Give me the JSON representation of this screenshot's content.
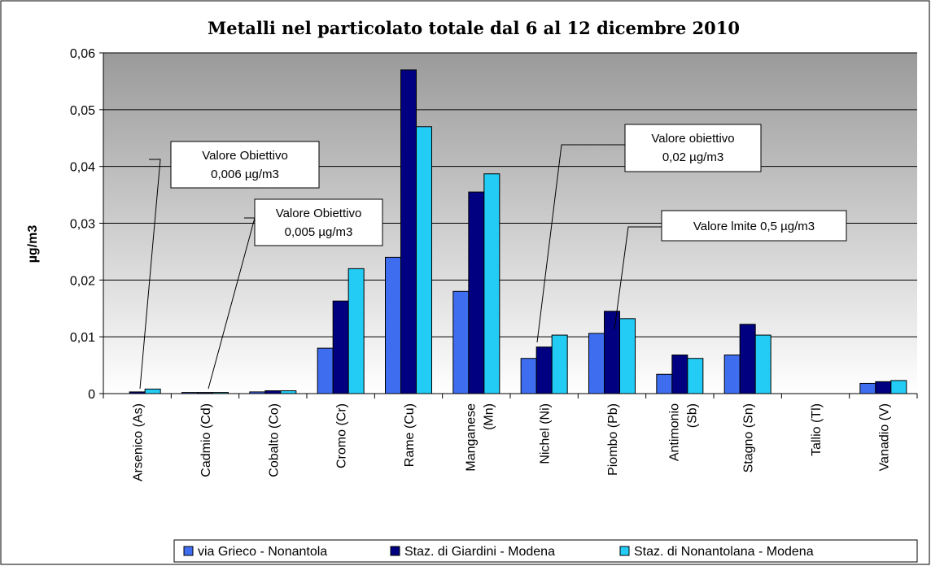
{
  "chart_data": {
    "type": "bar",
    "title": "Metalli nel particolato totale dal 6 al 12 dicembre 2010",
    "y_label": "µg/m3",
    "categories": [
      "Arsenico (As)",
      "Cadmio (Cd)",
      "Cobalto (Co)",
      "Cromo (Cr)",
      "Rame (Cu)",
      "Manganese\n(Mn)",
      "Nichel (Ni)",
      "Piombo (Pb)",
      "Antimonio\n(Sb)",
      "Stagno (Sn)",
      "Tallio (Tl)",
      "Vanadio (V)"
    ],
    "series": [
      {
        "name": "via Grieco - Nonantola",
        "color": "#3f6df0",
        "values": [
          0,
          0.0002,
          0.0003,
          0.008,
          0.024,
          0.018,
          0.0062,
          0.0106,
          0.0034,
          0.0068,
          0,
          0.0018
        ]
      },
      {
        "name": "Staz. di Giardini - Modena",
        "color": "#000080",
        "values": [
          0.0003,
          0.0002,
          0.0005,
          0.0163,
          0.057,
          0.0355,
          0.0082,
          0.0145,
          0.0068,
          0.0122,
          0,
          0.0021
        ]
      },
      {
        "name": "Staz. di Nonantolana - Modena",
        "color": "#22ccf5",
        "values": [
          0.0008,
          0.0002,
          0.0005,
          0.022,
          0.047,
          0.0387,
          0.0103,
          0.0132,
          0.0062,
          0.0103,
          0,
          0.0023
        ]
      }
    ],
    "ylim": [
      0,
      0.06
    ],
    "yticks": [
      0,
      {
        "value": 0.01,
        "label": "0,01"
      },
      {
        "value": 0.02,
        "label": "0,02"
      },
      {
        "value": 0.03,
        "label": "0,03"
      },
      {
        "value": 0.04,
        "label": "0,04"
      },
      {
        "value": 0.05,
        "label": "0,05"
      },
      {
        "value": 0.06,
        "label": "0,06"
      }
    ],
    "grid": true,
    "legend": "bottom",
    "annotations": [
      "Valore Obiettivo\n0,006 µg/m3",
      "Valore Obiettivo\n0,005 µg/m3",
      "Valore obiettivo\n0,02 µg/m3",
      "Valore lmite 0,5 µg/m3"
    ]
  }
}
